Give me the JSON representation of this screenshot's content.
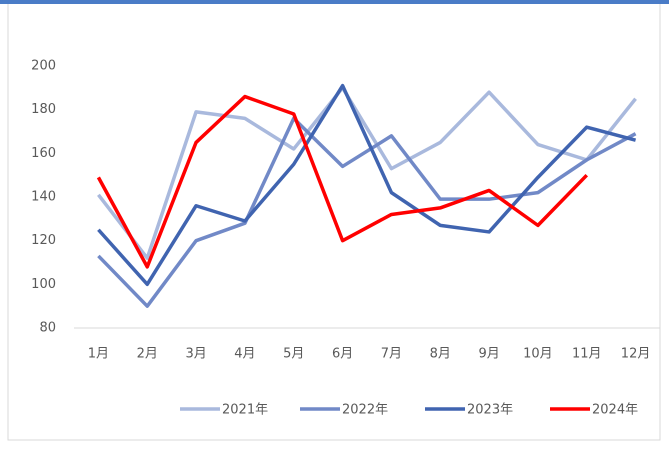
{
  "chart_data": {
    "type": "line",
    "categories": [
      "1月",
      "2月",
      "3月",
      "4月",
      "5月",
      "6月",
      "7月",
      "8月",
      "9月",
      "10月",
      "11月",
      "12月"
    ],
    "series": [
      {
        "name": "2021年",
        "color": "#a9b9dd",
        "values": [
          141,
          112,
          179,
          176,
          162,
          190,
          153,
          165,
          188,
          164,
          157,
          185
        ]
      },
      {
        "name": "2022年",
        "color": "#7189c7",
        "values": [
          113,
          90,
          120,
          128,
          176,
          154,
          168,
          139,
          139,
          142,
          157,
          169
        ]
      },
      {
        "name": "2023年",
        "color": "#4064b0",
        "values": [
          125,
          100,
          136,
          129,
          155,
          191,
          142,
          127,
          124,
          149,
          172,
          166
        ]
      },
      {
        "name": "2024年",
        "color": "#ff0000",
        "values": [
          149,
          108,
          165,
          186,
          178,
          120,
          132,
          135,
          143,
          127,
          150,
          null
        ]
      }
    ],
    "ylim": [
      80,
      200
    ],
    "yticks": [
      80,
      100,
      120,
      140,
      160,
      180,
      200
    ]
  }
}
